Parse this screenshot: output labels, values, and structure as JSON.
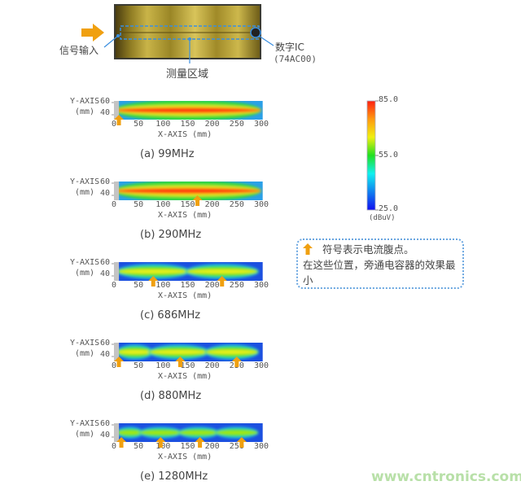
{
  "top_figure": {
    "signal_input_label": "信号输入",
    "digital_ic_label": "数字IC",
    "digital_ic_part": "(74AC00)",
    "measurement_area_label": "测量区域",
    "arrow_color": "#f0a010",
    "callout_color": "#3b8fe0"
  },
  "axes": {
    "y_axis_label": "Y-AXIS",
    "y_unit": "(mm)",
    "y_ticks": [
      "60",
      "40"
    ],
    "x_axis_label": "X-AXIS (mm)",
    "x_ticks": [
      "0",
      "50",
      "100",
      "150",
      "200",
      "250",
      "300"
    ]
  },
  "panels": [
    {
      "caption": "(a) 99MHz",
      "intensity": "high",
      "lobes_mm": [
        [
          10,
          290
        ]
      ],
      "antinodes_mm": [
        10
      ]
    },
    {
      "caption": "(b) 290MHz",
      "intensity": "high",
      "lobes_mm": [
        [
          10,
          290
        ]
      ],
      "antinodes_mm": [
        170
      ]
    },
    {
      "caption": "(c) 686MHz",
      "intensity": "medium",
      "lobes_mm": [
        [
          10,
          150
        ],
        [
          150,
          290
        ]
      ],
      "antinodes_mm": [
        80,
        220
      ]
    },
    {
      "caption": "(d) 880MHz",
      "intensity": "medium",
      "lobes_mm": [
        [
          10,
          75
        ],
        [
          75,
          190
        ],
        [
          190,
          290
        ]
      ],
      "antinodes_mm": [
        10,
        135,
        250
      ]
    },
    {
      "caption": "(e) 1280MHz",
      "intensity": "low",
      "lobes_mm": [
        [
          10,
          55
        ],
        [
          55,
          135
        ],
        [
          135,
          210
        ],
        [
          210,
          290
        ]
      ],
      "antinodes_mm": [
        15,
        95,
        175,
        260
      ]
    }
  ],
  "colorbar": {
    "max": "85.0",
    "mid": "55.0",
    "min": "25.0",
    "unit": "(dBuV)",
    "colors": [
      "#ff2010",
      "#ff9a10",
      "#f0f010",
      "#20e020",
      "#10f0f0",
      "#1080f0",
      "#1010f0"
    ]
  },
  "note": {
    "line1": "符号表示电流腹点。",
    "line2": "在这些位置，旁通电容器的效果最小"
  },
  "watermark": "www.cntronics.com"
}
